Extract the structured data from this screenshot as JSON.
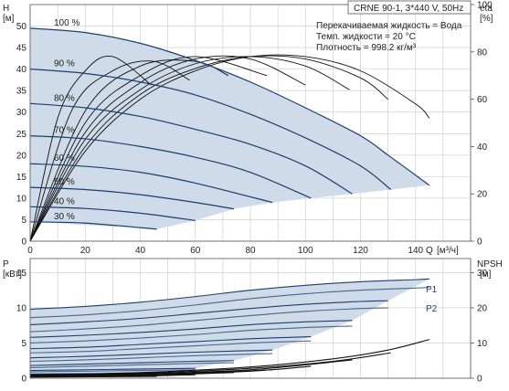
{
  "chart_data": [
    {
      "type": "line",
      "title": "CRNE 90-1, 3*440 V, 50Hz",
      "annotations": [
        "Перекачиваемая жидкость = Вода",
        "Темп. жидкости = 20 °C",
        "Плотность = 998.2 кг/м³"
      ],
      "ylabel": "H",
      "yunit": "[м]",
      "y2label": "eta",
      "y2unit": "[%]",
      "xlabel": "Q",
      "xunit": "[м³/ч]",
      "xlim": [
        0,
        160
      ],
      "ylim": [
        0,
        55
      ],
      "y2lim": [
        0,
        100
      ],
      "xticks": [
        0,
        20,
        40,
        60,
        80,
        100,
        120,
        140
      ],
      "yticks": [
        0,
        5,
        10,
        15,
        20,
        25,
        30,
        35,
        40,
        45,
        50
      ],
      "y2ticks": [
        0,
        20,
        40,
        60,
        80,
        100
      ],
      "grid": true,
      "series": [
        {
          "name": "100 %",
          "color": "#1c3f70",
          "x": [
            0,
            20,
            40,
            60,
            80,
            100,
            120,
            130,
            145
          ],
          "y": [
            49.5,
            48.5,
            46,
            42,
            37,
            31,
            24.5,
            20,
            13
          ]
        },
        {
          "name": "90 %",
          "color": "#1c3f70",
          "x": [
            0,
            20,
            40,
            60,
            80,
            100,
            120,
            131
          ],
          "y": [
            40,
            39,
            37,
            34,
            29.5,
            24,
            17.5,
            12
          ]
        },
        {
          "name": "80 %",
          "color": "#1c3f70",
          "x": [
            0,
            20,
            40,
            60,
            80,
            100,
            117
          ],
          "y": [
            32,
            31,
            29,
            26,
            22.5,
            17.5,
            11
          ]
        },
        {
          "name": "70 %",
          "color": "#1c3f70",
          "x": [
            0,
            20,
            40,
            60,
            80,
            102
          ],
          "y": [
            24.5,
            23.8,
            22,
            19.5,
            16,
            10
          ]
        },
        {
          "name": "60 %",
          "color": "#1c3f70",
          "x": [
            0,
            20,
            40,
            60,
            88
          ],
          "y": [
            18,
            17.4,
            16,
            13.5,
            9
          ]
        },
        {
          "name": "50 %",
          "color": "#1c3f70",
          "x": [
            0,
            20,
            40,
            60,
            74
          ],
          "y": [
            12.5,
            12,
            10.8,
            9,
            7.5
          ]
        },
        {
          "name": "40 %",
          "color": "#1c3f70",
          "x": [
            0,
            20,
            40,
            60
          ],
          "y": [
            8,
            7.6,
            6.5,
            4.8
          ]
        },
        {
          "name": "30 %",
          "color": "#1c3f70",
          "x": [
            0,
            20,
            46
          ],
          "y": [
            4.5,
            4.2,
            2.8
          ]
        }
      ],
      "eta_series": [
        {
          "x": [
            0,
            20,
            40,
            60,
            80,
            100,
            120,
            140,
            145
          ],
          "y": [
            0,
            38,
            60,
            72,
            78,
            78,
            72,
            58,
            52
          ]
        },
        {
          "x": [
            0,
            20,
            40,
            60,
            80,
            100,
            120,
            130
          ],
          "y": [
            0,
            40,
            62,
            73,
            78,
            77,
            69,
            60
          ]
        },
        {
          "x": [
            0,
            20,
            40,
            60,
            80,
            100,
            116
          ],
          "y": [
            0,
            43,
            64,
            75,
            78,
            74,
            64
          ]
        },
        {
          "x": [
            0,
            20,
            40,
            60,
            80,
            100
          ],
          "y": [
            0,
            46,
            67,
            77,
            77,
            66
          ]
        },
        {
          "x": [
            0,
            20,
            40,
            60,
            86
          ],
          "y": [
            0,
            50,
            70,
            78,
            70
          ]
        },
        {
          "x": [
            0,
            20,
            40,
            60,
            72
          ],
          "y": [
            0,
            55,
            74,
            76,
            70
          ]
        },
        {
          "x": [
            0,
            15,
            30,
            45,
            58
          ],
          "y": [
            0,
            55,
            72,
            76,
            68
          ]
        },
        {
          "x": [
            0,
            10,
            20,
            30,
            44
          ],
          "y": [
            0,
            52,
            72,
            78,
            66
          ]
        }
      ]
    },
    {
      "type": "line",
      "ylabel": "P",
      "yunit": "[кВт]",
      "y2label": "NPSH",
      "y2unit": "[м]",
      "xlim": [
        0,
        160
      ],
      "ylim": [
        0,
        17
      ],
      "y2lim": [
        0,
        34
      ],
      "yticks": [
        0,
        5,
        10,
        15
      ],
      "y2ticks": [
        0,
        10,
        20,
        30
      ],
      "grid": true,
      "legend": [
        "P1",
        "P2"
      ],
      "p1_series": [
        {
          "x": [
            0,
            20,
            40,
            60,
            80,
            100,
            120,
            140,
            145
          ],
          "y": [
            9.8,
            10.2,
            10.8,
            11.6,
            12.5,
            13.2,
            13.7,
            14,
            14.1
          ]
        },
        {
          "x": [
            0,
            20,
            40,
            60,
            80,
            100,
            120,
            130
          ],
          "y": [
            7.6,
            8,
            8.5,
            9.2,
            9.9,
            10.5,
            10.9,
            11
          ]
        },
        {
          "x": [
            0,
            20,
            40,
            60,
            80,
            100,
            117
          ],
          "y": [
            5.8,
            6.1,
            6.5,
            7,
            7.6,
            8,
            8.2
          ]
        },
        {
          "x": [
            0,
            20,
            40,
            60,
            80,
            102
          ],
          "y": [
            4.2,
            4.4,
            4.8,
            5.2,
            5.6,
            5.9
          ]
        },
        {
          "x": [
            0,
            20,
            40,
            60,
            88
          ],
          "y": [
            2.9,
            3.1,
            3.4,
            3.7,
            4
          ]
        },
        {
          "x": [
            0,
            20,
            40,
            60,
            74
          ],
          "y": [
            1.8,
            2,
            2.2,
            2.4,
            2.5
          ]
        },
        {
          "x": [
            0,
            20,
            40,
            60
          ],
          "y": [
            1.1,
            1.2,
            1.3,
            1.4
          ]
        },
        {
          "x": [
            0,
            20,
            46
          ],
          "y": [
            0.6,
            0.65,
            0.7
          ]
        }
      ],
      "p2_series": [
        {
          "x": [
            0,
            20,
            40,
            60,
            80,
            100,
            120,
            140,
            145
          ],
          "y": [
            8.6,
            9,
            9.6,
            10.4,
            11.3,
            12,
            12.5,
            12.8,
            12.9
          ]
        },
        {
          "x": [
            0,
            20,
            40,
            60,
            80,
            100,
            120,
            130
          ],
          "y": [
            6.6,
            7,
            7.5,
            8.2,
            8.9,
            9.5,
            9.9,
            10
          ]
        },
        {
          "x": [
            0,
            20,
            40,
            60,
            80,
            100,
            117
          ],
          "y": [
            5,
            5.3,
            5.7,
            6.2,
            6.8,
            7.2,
            7.4
          ]
        },
        {
          "x": [
            0,
            20,
            40,
            60,
            80,
            102
          ],
          "y": [
            3.6,
            3.8,
            4.2,
            4.6,
            5,
            5.3
          ]
        },
        {
          "x": [
            0,
            20,
            40,
            60,
            88
          ],
          "y": [
            2.4,
            2.6,
            2.9,
            3.2,
            3.5
          ]
        },
        {
          "x": [
            0,
            20,
            40,
            60,
            74
          ],
          "y": [
            1.5,
            1.7,
            1.9,
            2.1,
            2.2
          ]
        },
        {
          "x": [
            0,
            20,
            40,
            60
          ],
          "y": [
            0.9,
            1,
            1.1,
            1.2
          ]
        },
        {
          "x": [
            0,
            20,
            46
          ],
          "y": [
            0.5,
            0.55,
            0.6
          ]
        }
      ],
      "npsh_series": [
        {
          "x": [
            0,
            40,
            80,
            110,
            130,
            145
          ],
          "y": [
            1,
            1.6,
            3.2,
            5.5,
            8,
            11
          ]
        },
        {
          "x": [
            0,
            40,
            80,
            110,
            131
          ],
          "y": [
            0.9,
            1.4,
            2.8,
            4.8,
            7.2
          ]
        },
        {
          "x": [
            0,
            40,
            80,
            117
          ],
          "y": [
            0.8,
            1.2,
            2.4,
            5.2
          ]
        },
        {
          "x": [
            0,
            40,
            80,
            102
          ],
          "y": [
            0.7,
            1,
            2,
            3.4
          ]
        },
        {
          "x": [
            0,
            40,
            88
          ],
          "y": [
            0.6,
            0.9,
            2.4
          ]
        },
        {
          "x": [
            0,
            40,
            74
          ],
          "y": [
            0.5,
            0.8,
            1.6
          ]
        },
        {
          "x": [
            0,
            40,
            60
          ],
          "y": [
            0.4,
            0.6,
            1
          ]
        },
        {
          "x": [
            0,
            46
          ],
          "y": [
            0.3,
            0.5
          ]
        }
      ]
    }
  ]
}
